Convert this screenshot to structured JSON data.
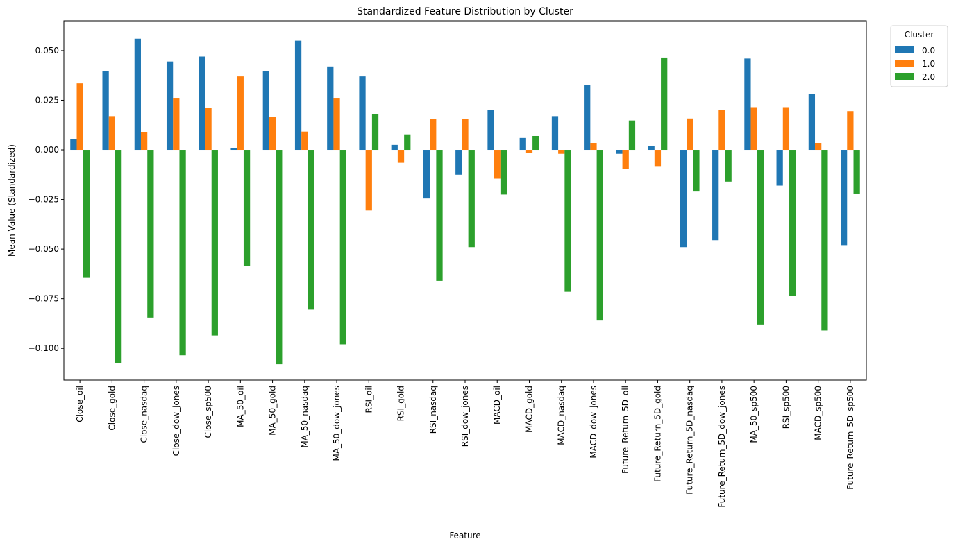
{
  "chart_data": {
    "type": "bar",
    "title": "Standardized Feature Distribution by Cluster",
    "xlabel": "Feature",
    "ylabel": "Mean Value (Standardized)",
    "ylim": [
      -0.116,
      0.065
    ],
    "yticks": [
      -0.1,
      -0.075,
      -0.05,
      -0.025,
      0.0,
      0.025,
      0.05
    ],
    "ytick_labels": [
      "−0.100",
      "−0.075",
      "−0.050",
      "−0.025",
      "0.000",
      "0.025",
      "0.050"
    ],
    "grid": false,
    "legend": {
      "title": "Cluster",
      "placement": "outside-top-right"
    },
    "categories": [
      "Close_oil",
      "Close_gold",
      "Close_nasdaq",
      "Close_dow_jones",
      "Close_sp500",
      "MA_50_oil",
      "MA_50_gold",
      "MA_50_nasdaq",
      "MA_50_dow_jones",
      "RSI_oil",
      "RSI_gold",
      "RSI_nasdaq",
      "RSI_dow_jones",
      "MACD_oil",
      "MACD_gold",
      "MACD_nasdaq",
      "MACD_dow_jones",
      "Future_Return_5D_oil",
      "Future_Return_5D_gold",
      "Future_Return_5D_nasdaq",
      "Future_Return_5D_dow_jones",
      "MA_50_sp500",
      "RSI_sp500",
      "MACD_sp500",
      "Future_Return_5D_sp500"
    ],
    "series": [
      {
        "name": "0.0",
        "color": "#1f77b4",
        "values": [
          0.0055,
          0.0395,
          0.056,
          0.0445,
          0.047,
          0.0008,
          0.0395,
          0.055,
          0.042,
          0.037,
          0.0025,
          -0.0245,
          -0.0125,
          0.02,
          0.006,
          0.017,
          0.0325,
          -0.002,
          0.002,
          -0.049,
          -0.0455,
          0.046,
          -0.018,
          0.028,
          -0.048
        ]
      },
      {
        "name": "1.0",
        "color": "#ff7f0e",
        "values": [
          0.0335,
          0.017,
          0.0088,
          0.0262,
          0.0213,
          0.037,
          0.0165,
          0.0092,
          0.0262,
          -0.0305,
          -0.0065,
          0.0155,
          0.0155,
          -0.0145,
          -0.0015,
          -0.002,
          0.0035,
          -0.0095,
          -0.0085,
          0.0158,
          0.0202,
          0.0215,
          0.0215,
          0.0035,
          0.0195
        ]
      },
      {
        "name": "2.0",
        "color": "#2ca02c",
        "values": [
          -0.0645,
          -0.1075,
          -0.0845,
          -0.1035,
          -0.0935,
          -0.0585,
          -0.108,
          -0.0805,
          -0.098,
          0.018,
          0.0078,
          -0.066,
          -0.049,
          -0.0225,
          0.007,
          -0.0715,
          -0.086,
          0.0148,
          0.0465,
          -0.021,
          -0.016,
          -0.088,
          -0.0735,
          -0.091,
          -0.022
        ]
      }
    ]
  }
}
